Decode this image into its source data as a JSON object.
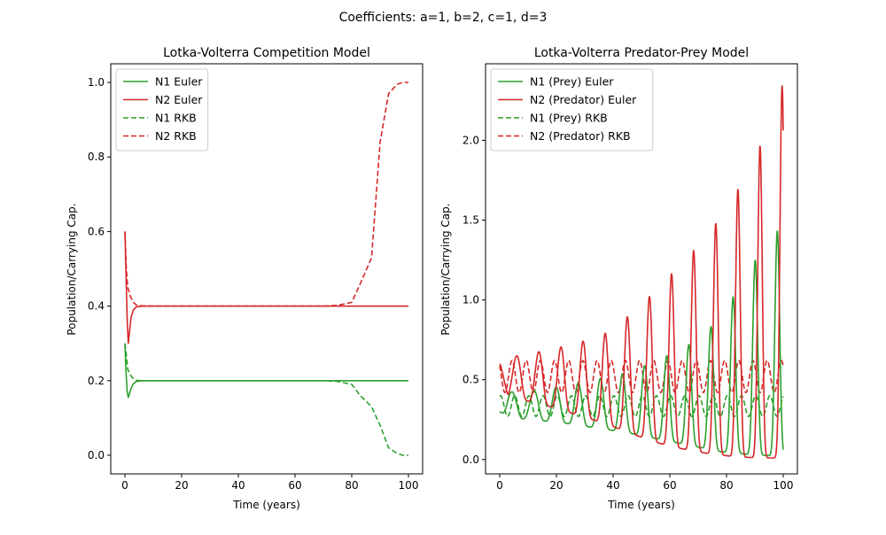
{
  "figure_title": "Coefficients: a=1, b=2, c=1, d=3",
  "colors": {
    "n1": "#2ca02c",
    "n2": "#d62728"
  },
  "chart_data": [
    {
      "type": "line",
      "title": "Lotka-Volterra Competition Model",
      "xlabel": "Time (years)",
      "ylabel": "Population/Carrying Cap.",
      "xlim": [
        -5,
        105
      ],
      "ylim": [
        -0.05,
        1.05
      ],
      "xticks": [
        0,
        20,
        40,
        60,
        80,
        100
      ],
      "yticks": [
        0.0,
        0.2,
        0.4,
        0.6,
        0.8,
        1.0
      ],
      "xtick_labels": [
        "0",
        "20",
        "40",
        "60",
        "80",
        "100"
      ],
      "ytick_labels": [
        "0.0",
        "0.2",
        "0.4",
        "0.6",
        "0.8",
        "1.0"
      ],
      "legend_position": "top-left",
      "series": [
        {
          "name": "N1 Euler",
          "color": "#2ca02c",
          "dash": "solid",
          "x": [
            0,
            0.4,
            0.8,
            1.2,
            1.6,
            2.2,
            3,
            4,
            6,
            10,
            30,
            50,
            70,
            100
          ],
          "y": [
            0.3,
            0.22,
            0.17,
            0.155,
            0.165,
            0.18,
            0.192,
            0.198,
            0.2,
            0.2,
            0.2,
            0.2,
            0.2,
            0.2
          ]
        },
        {
          "name": "N2 Euler",
          "color": "#d62728",
          "dash": "solid",
          "x": [
            0,
            0.4,
            0.8,
            1.2,
            1.6,
            2.2,
            3,
            4,
            6,
            10,
            30,
            50,
            70,
            100
          ],
          "y": [
            0.6,
            0.48,
            0.36,
            0.3,
            0.33,
            0.37,
            0.39,
            0.398,
            0.4,
            0.4,
            0.4,
            0.4,
            0.4,
            0.4
          ]
        },
        {
          "name": "N1 RKB",
          "color": "#2ca02c",
          "dash": "dashed",
          "x": [
            0,
            0.5,
            1,
            2,
            3,
            4,
            6,
            10,
            40,
            70,
            75,
            80,
            83,
            87,
            90,
            93,
            96,
            98,
            100
          ],
          "y": [
            0.3,
            0.27,
            0.23,
            0.215,
            0.205,
            0.201,
            0.2,
            0.2,
            0.2,
            0.2,
            0.198,
            0.19,
            0.16,
            0.13,
            0.08,
            0.02,
            0.005,
            0.0,
            0.0
          ]
        },
        {
          "name": "N2 RKB",
          "color": "#d62728",
          "dash": "dashed",
          "x": [
            0,
            0.5,
            1,
            2,
            3,
            4,
            6,
            10,
            40,
            70,
            75,
            80,
            83,
            87,
            90,
            93,
            96,
            98,
            100
          ],
          "y": [
            0.6,
            0.5,
            0.45,
            0.425,
            0.41,
            0.403,
            0.401,
            0.4,
            0.4,
            0.4,
            0.402,
            0.41,
            0.46,
            0.53,
            0.84,
            0.97,
            0.995,
            1.0,
            1.0
          ]
        }
      ]
    },
    {
      "type": "line",
      "title": "Lotka-Volterra Predator-Prey Model",
      "xlabel": "Time (years)",
      "ylabel": "Population/Carrying Cap.",
      "xlim": [
        -5,
        105
      ],
      "ylim": [
        -0.09,
        2.48
      ],
      "xticks": [
        0,
        20,
        40,
        60,
        80,
        100
      ],
      "yticks": [
        0.0,
        0.5,
        1.0,
        1.5,
        2.0
      ],
      "xtick_labels": [
        "0",
        "20",
        "40",
        "60",
        "80",
        "100"
      ],
      "ytick_labels": [
        "0.0",
        "0.5",
        "1.0",
        "1.5",
        "2.0"
      ],
      "legend_position": "top-left",
      "series": [
        {
          "name": "N1 (Prey) Euler",
          "color": "#2ca02c",
          "dash": "solid",
          "period": 7.8,
          "n1_start": 0.3,
          "n2_start": 0.6,
          "prey_peaks": [
            0.42,
            0.43,
            0.46,
            0.5,
            0.54,
            0.62,
            0.72,
            0.88,
            1.22,
            1.48
          ],
          "prey_troughs": [
            0.27,
            0.25,
            0.23,
            0.2,
            0.17,
            0.13,
            0.09,
            0.05,
            0.03,
            0.02
          ]
        },
        {
          "name": "N2 (Predator) Euler",
          "color": "#d62728",
          "dash": "solid",
          "pred_peaks": [
            0.63,
            0.66,
            0.69,
            0.73,
            0.78,
            0.9,
            1.05,
            1.22,
            1.39,
            1.62,
            1.92,
            2.36
          ],
          "pred_troughs": [
            0.4,
            0.37,
            0.33,
            0.28,
            0.23,
            0.17,
            0.11,
            0.07,
            0.04,
            0.02,
            0.01,
            0.01
          ]
        },
        {
          "name": "N1 (Prey) RKB",
          "color": "#2ca02c",
          "dash": "dashed",
          "rkb_period": 5.0,
          "prey_range": [
            0.27,
            0.4
          ]
        },
        {
          "name": "N2 (Predator) RKB",
          "color": "#d62728",
          "dash": "dashed",
          "pred_range": [
            0.42,
            0.62
          ]
        }
      ]
    }
  ]
}
